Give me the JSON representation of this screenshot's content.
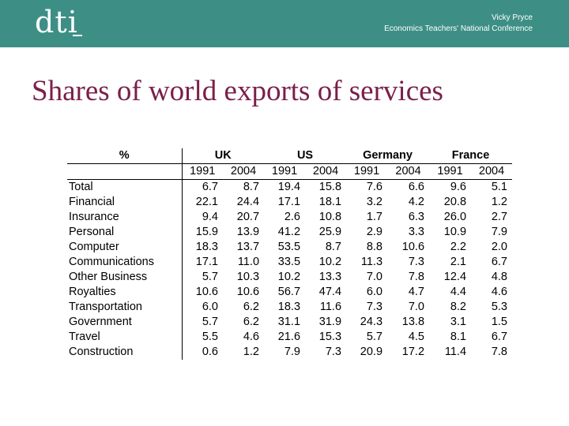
{
  "header": {
    "logo_text": "dti",
    "presenter_name": "Vicky Pryce",
    "event_name": "Economics Teachers' National Conference",
    "background_color": "#3d8f86"
  },
  "slide": {
    "title": "Shares of world exports of services",
    "title_color": "#7a1f4a"
  },
  "table": {
    "corner_label": "%",
    "countries": [
      "UK",
      "US",
      "Germany",
      "France"
    ],
    "years": [
      "1991",
      "2004",
      "1991",
      "2004",
      "1991",
      "2004",
      "1991",
      "2004"
    ],
    "rows": [
      {
        "label": "Total",
        "values": [
          "6.7",
          "8.7",
          "19.4",
          "15.8",
          "7.6",
          "6.6",
          "9.6",
          "5.1"
        ]
      },
      {
        "label": "Financial",
        "values": [
          "22.1",
          "24.4",
          "17.1",
          "18.1",
          "3.2",
          "4.2",
          "20.8",
          "1.2"
        ]
      },
      {
        "label": "Insurance",
        "values": [
          "9.4",
          "20.7",
          "2.6",
          "10.8",
          "1.7",
          "6.3",
          "26.0",
          "2.7"
        ]
      },
      {
        "label": "Personal",
        "values": [
          "15.9",
          "13.9",
          "41.2",
          "25.9",
          "2.9",
          "3.3",
          "10.9",
          "7.9"
        ]
      },
      {
        "label": "Computer",
        "values": [
          "18.3",
          "13.7",
          "53.5",
          "8.7",
          "8.8",
          "10.6",
          "2.2",
          "2.0"
        ]
      },
      {
        "label": "Communications",
        "values": [
          "17.1",
          "11.0",
          "33.5",
          "10.2",
          "11.3",
          "7.3",
          "2.1",
          "6.7"
        ]
      },
      {
        "label": "Other Business",
        "values": [
          "5.7",
          "10.3",
          "10.2",
          "13.3",
          "7.0",
          "7.8",
          "12.4",
          "4.8"
        ]
      },
      {
        "label": "Royalties",
        "values": [
          "10.6",
          "10.6",
          "56.7",
          "47.4",
          "6.0",
          "4.7",
          "4.4",
          "4.6"
        ]
      },
      {
        "label": "Transportation",
        "values": [
          "6.0",
          "6.2",
          "18.3",
          "11.6",
          "7.3",
          "7.0",
          "8.2",
          "5.3"
        ]
      },
      {
        "label": "Government",
        "values": [
          "5.7",
          "6.2",
          "31.1",
          "31.9",
          "24.3",
          "13.8",
          "3.1",
          "1.5"
        ]
      },
      {
        "label": "Travel",
        "values": [
          "5.5",
          "4.6",
          "21.6",
          "15.3",
          "5.7",
          "4.5",
          "8.1",
          "6.7"
        ]
      },
      {
        "label": "Construction",
        "values": [
          "0.6",
          "1.2",
          "7.9",
          "7.3",
          "20.9",
          "17.2",
          "11.4",
          "7.8"
        ]
      }
    ]
  }
}
